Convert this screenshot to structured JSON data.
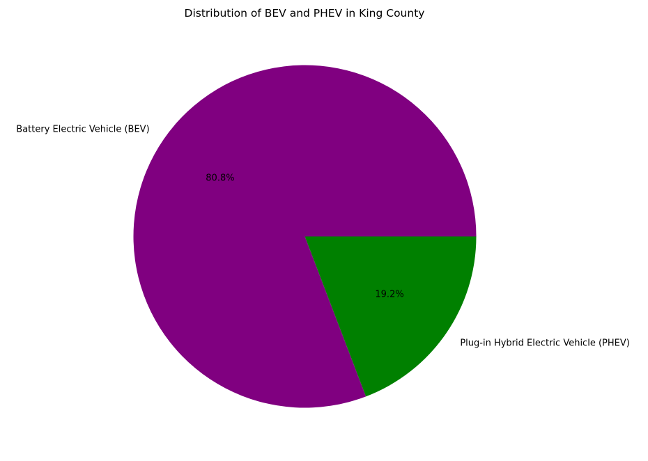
{
  "chart_data": {
    "type": "pie",
    "title": "Distribution of BEV and PHEV in King County",
    "slices": [
      {
        "label": "Battery Electric Vehicle (BEV)",
        "value": 80.8,
        "pct_label": "80.8%",
        "color": "#800080"
      },
      {
        "label": "Plug-in Hybrid Electric Vehicle (PHEV)",
        "value": 19.2,
        "pct_label": "19.2%",
        "color": "#008000"
      }
    ],
    "start_angle_deg": 0,
    "direction": "counterclockwise",
    "legend": "none"
  }
}
